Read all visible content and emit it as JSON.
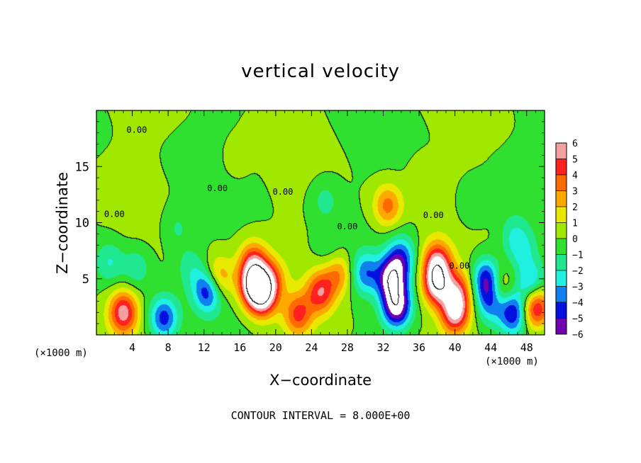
{
  "chart_data": {
    "type": "heatmap",
    "title": "vertical velocity",
    "xlabel": "X−coordinate",
    "ylabel": "Z−coordinate",
    "x_unit_left": "(×1000 m)",
    "x_unit_right": "(×1000 m)",
    "footer": "CONTOUR INTERVAL = 8.000E+00",
    "xlim": [
      0,
      50
    ],
    "ylim": [
      0,
      20
    ],
    "x_ticks": [
      4,
      8,
      12,
      16,
      20,
      24,
      28,
      32,
      36,
      40,
      44,
      48
    ],
    "x_tick_labels": [
      "4",
      "8",
      "12",
      "16",
      "20",
      "24",
      "28",
      "32",
      "36",
      "40",
      "44",
      "48"
    ],
    "y_ticks": [
      5,
      10,
      15
    ],
    "y_tick_labels": [
      "5",
      "10",
      "15"
    ],
    "contour_labels": [
      {
        "text": "0.00",
        "x": 4.5,
        "y": 18.0
      },
      {
        "text": "0.00",
        "x": 2.0,
        "y": 10.5
      },
      {
        "text": "0.00",
        "x": 13.5,
        "y": 12.8
      },
      {
        "text": "0.00",
        "x": 20.8,
        "y": 12.5
      },
      {
        "text": "0.00",
        "x": 28.0,
        "y": 9.4
      },
      {
        "text": "0.00",
        "x": 37.6,
        "y": 10.4
      },
      {
        "text": "0.00",
        "x": 40.5,
        "y": 5.9
      }
    ],
    "colorbar": {
      "ticks": [
        6,
        5,
        4,
        3,
        2,
        1,
        0,
        -1,
        -2,
        -3,
        -4,
        -5,
        -6
      ],
      "labels": [
        "6",
        "5",
        "4",
        "3",
        "2",
        "1",
        "0",
        "−1",
        "−2",
        "−3",
        "−4",
        "−5",
        "−6"
      ],
      "colors": [
        "#f4a0a0",
        "#ff2020",
        "#ff6a00",
        "#ffa800",
        "#e8e800",
        "#a0e800",
        "#30e030",
        "#20e890",
        "#20f0e0",
        "#1080f0",
        "#0010e0",
        "#7000b0"
      ],
      "saturation_high": "#ffffff",
      "saturation_low": "#ffffff"
    },
    "features": [
      {
        "x": 3.0,
        "z": 2.0,
        "w": 5.5
      },
      {
        "x": 7.5,
        "z": 1.5,
        "w": -4.5
      },
      {
        "x": 10.5,
        "z": 6.0,
        "w": -1.5
      },
      {
        "x": 12.5,
        "z": 4.0,
        "w": -5.5
      },
      {
        "x": 13.5,
        "z": 5.0,
        "w": 4.0
      },
      {
        "x": 17.5,
        "z": 4.5,
        "w": 6.5
      },
      {
        "x": 17.5,
        "z": 6.5,
        "w": 4.0
      },
      {
        "x": 18.5,
        "z": 3.5,
        "w": 6.5
      },
      {
        "x": 19.5,
        "z": 5.0,
        "w": 3.0
      },
      {
        "x": 22.5,
        "z": 1.8,
        "w": 4.0
      },
      {
        "x": 25.0,
        "z": 3.8,
        "w": 4.5
      },
      {
        "x": 27.0,
        "z": 5.5,
        "w": 3.0
      },
      {
        "x": 25.5,
        "z": 12.0,
        "w": -1.5
      },
      {
        "x": 26.0,
        "z": 7.5,
        "w": -1.0
      },
      {
        "x": 32.5,
        "z": 11.5,
        "w": 3.5
      },
      {
        "x": 33.0,
        "z": 5.0,
        "w": -6.5
      },
      {
        "x": 33.5,
        "z": 2.5,
        "w": -6.5
      },
      {
        "x": 34.0,
        "z": 7.0,
        "w": -3.5
      },
      {
        "x": 30.0,
        "z": 5.5,
        "w": -3.5
      },
      {
        "x": 38.0,
        "z": 4.5,
        "w": 6.5
      },
      {
        "x": 38.0,
        "z": 6.5,
        "w": 5.0
      },
      {
        "x": 40.0,
        "z": 2.0,
        "w": 6.0
      },
      {
        "x": 40.5,
        "z": 4.0,
        "w": 3.5
      },
      {
        "x": 43.5,
        "z": 5.0,
        "w": -5.0
      },
      {
        "x": 44.0,
        "z": 3.0,
        "w": -4.0
      },
      {
        "x": 45.0,
        "z": 4.0,
        "w": 3.0
      },
      {
        "x": 46.5,
        "z": 2.0,
        "w": -5.0
      },
      {
        "x": 49.0,
        "z": 2.5,
        "w": 6.0
      },
      {
        "x": 48.5,
        "z": 4.5,
        "w": -3.5
      },
      {
        "x": 1.5,
        "z": 6.5,
        "w": -2.0
      },
      {
        "x": 4.5,
        "z": 6.0,
        "w": -1.8
      },
      {
        "x": 9.0,
        "z": 9.5,
        "w": -1.2
      },
      {
        "x": 42.0,
        "z": 11.5,
        "w": -1.2
      },
      {
        "x": 46.5,
        "z": 9.0,
        "w": -1.5
      },
      {
        "x": 47.5,
        "z": 7.5,
        "w": -2.0
      },
      {
        "x": 36.5,
        "z": 14.0,
        "w": 0.8
      },
      {
        "x": 15.5,
        "z": 15.5,
        "w": 0.6
      }
    ]
  }
}
